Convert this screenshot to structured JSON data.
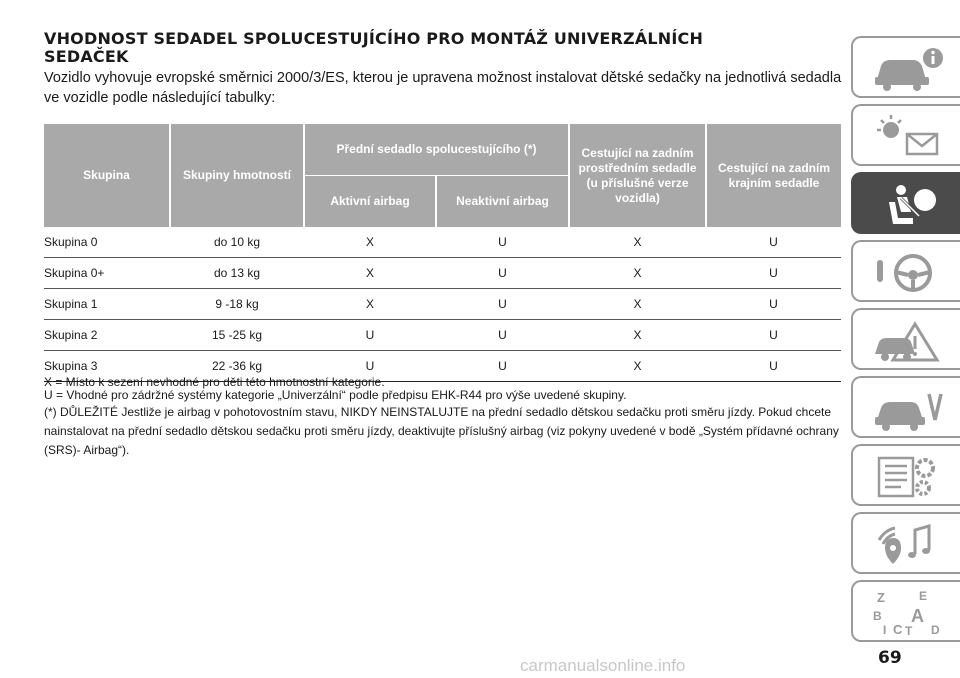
{
  "heading": {
    "line1": "VHODNOST SEDADEL SPOLUCESTUJÍCÍHO PRO MONTÁŽ UNIVERZÁLNÍCH",
    "line2": "SEDAČEK"
  },
  "intro": "Vozidlo vyhovuje evropské směrnici 2000/3/ES, kterou je upravena možnost instalovat dětské sedačky na jednotlivá sedadla ve vozidle podle následující tabulky:",
  "table": {
    "headers": {
      "group": "Skupina",
      "weight": "Skupiny hmotností",
      "front": "Přední sedadlo spolucestujícího (*)",
      "active": "Aktivní airbag",
      "inactive": "Neaktivní airbag",
      "rear_center": "Cestující na zadním prostředním sedadle (u příslušné verze vozidla)",
      "rear_side": "Cestující na zadním krajním sedadle"
    },
    "rows": [
      [
        "Skupina 0",
        "do 10 kg",
        "X",
        "U",
        "X",
        "U"
      ],
      [
        "Skupina 0+",
        "do 13 kg",
        "X",
        "U",
        "X",
        "U"
      ],
      [
        "Skupina 1",
        "9 -18 kg",
        "X",
        "U",
        "X",
        "U"
      ],
      [
        "Skupina 2",
        "15 -25 kg",
        "U",
        "U",
        "X",
        "U"
      ],
      [
        "Skupina 3",
        "22 -36 kg",
        "U",
        "U",
        "X",
        "U"
      ]
    ]
  },
  "notes": {
    "x": "X = Místo k sezení nevhodné pro děti této hmotnostní kategorie.",
    "u": "U = Vhodné pro zádržné systémy kategorie „Univerzální“ podle předpisu EHK-R44 pro výše uvedené skupiny.",
    "important": "(*) DŮLEŽITÉ Jestliže je airbag v pohotovostním stavu, NIKDY NEINSTALUJTE na přední sedadlo dětskou sedačku proti směru jízdy. Pokud chcete nainstalovat na přední sedadlo dětskou sedačku proti směru jízdy, deaktivujte příslušný airbag (viz pokyny uvedené v bodě „Systém přídavné ochrany (SRS)- Airbag“)."
  },
  "page_number": "69",
  "watermark": "carmanualsonline.info",
  "sidebar": {
    "icons": [
      "car-info-icon",
      "warning-lights-icon",
      "seat-airbag-icon",
      "steering-wheel-icon",
      "emergency-crash-icon",
      "car-maintenance-icon",
      "specs-gear-icon",
      "multimedia-music-icon",
      "alphabetical-index-icon"
    ],
    "active_index": 2,
    "index_letters": [
      "Z",
      "E",
      "B",
      "A",
      "I",
      "C",
      "T",
      "D"
    ]
  },
  "colors": {
    "header_bg": "#a9a9a9",
    "tab_active": "#4b4b4b",
    "tab_border": "#9a9a9a"
  }
}
